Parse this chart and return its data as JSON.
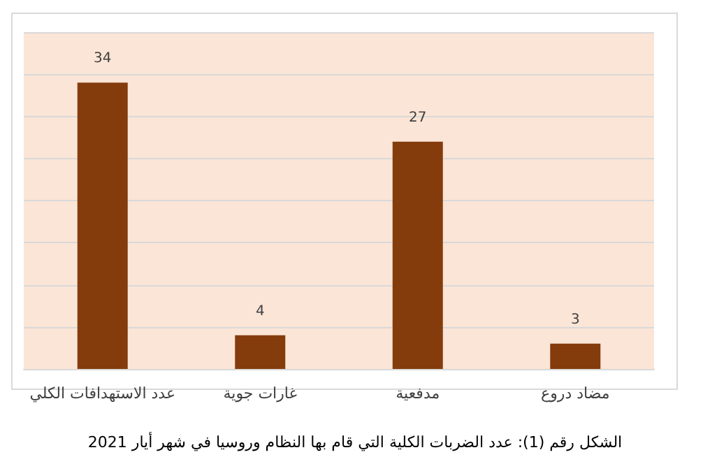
{
  "chart_data": {
    "type": "bar",
    "categories": [
      "عدد الاستهدافات الكلي",
      "غارات جوية",
      "مدفعية",
      "مضاد دروع"
    ],
    "values": [
      34,
      4,
      27,
      3
    ],
    "color": "#843c0c",
    "data_labels": true,
    "ylim": [
      0,
      40
    ],
    "yticks": [
      {
        "value": 0,
        "label": null
      },
      {
        "value": 5,
        "label": null
      },
      {
        "value": 10,
        "label": null
      },
      {
        "value": 15,
        "label": null
      },
      {
        "value": 20,
        "label": null
      },
      {
        "value": 25,
        "label": null
      },
      {
        "value": 30,
        "label": null
      },
      {
        "value": 35,
        "label": null
      },
      {
        "value": 40,
        "label": null
      }
    ],
    "tick_labels": "x",
    "grid": "y",
    "annotations": [
      "الشكل رقم (1): عدد الضربات الكلية التي قام بها النظام وروسيا في شهر أيار 2021"
    ]
  }
}
